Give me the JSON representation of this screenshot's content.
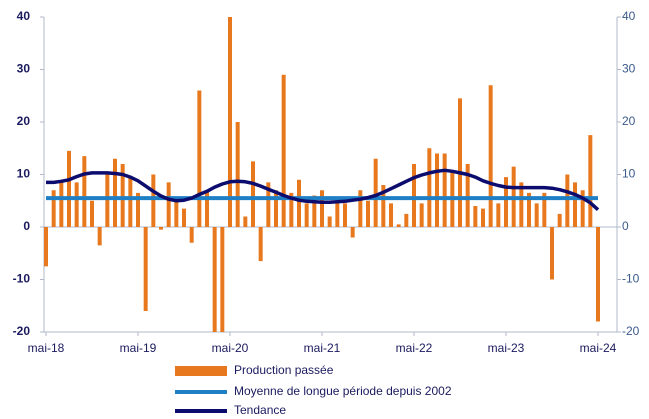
{
  "chart_data": {
    "type": "bar",
    "categories": [
      "mai-18",
      null,
      null,
      null,
      null,
      null,
      null,
      null,
      null,
      null,
      null,
      null,
      "mai-19",
      null,
      null,
      null,
      null,
      null,
      null,
      null,
      null,
      null,
      null,
      null,
      "mai-20",
      null,
      null,
      null,
      null,
      null,
      null,
      null,
      null,
      null,
      null,
      null,
      "mai-21",
      null,
      null,
      null,
      null,
      null,
      null,
      null,
      null,
      null,
      null,
      null,
      "mai-22",
      null,
      null,
      null,
      null,
      null,
      null,
      null,
      null,
      null,
      null,
      null,
      "mai-23",
      null,
      null,
      null,
      null,
      null,
      null,
      null,
      null,
      null,
      null,
      null,
      "mai-24"
    ],
    "series": [
      {
        "name": "Production passée",
        "color": "#e8781e",
        "kind": "bar",
        "values": [
          -7.5,
          7,
          8.5,
          14.5,
          8.5,
          13.5,
          5,
          -3.5,
          10.5,
          13,
          12,
          9.5,
          6.5,
          -16,
          10,
          -0.5,
          8.5,
          5.5,
          3.5,
          -3,
          26,
          7,
          -20,
          -20,
          40,
          20,
          2,
          12.5,
          -6.5,
          8.5,
          7,
          29,
          6.5,
          9,
          4.5,
          6,
          7,
          2,
          5,
          4.5,
          -2,
          7,
          5,
          13,
          8,
          4.5,
          0.5,
          2.5,
          12,
          4.5,
          15,
          14,
          14,
          10.5,
          24.5,
          12,
          4,
          3.5,
          27,
          4.5,
          9.5,
          11.5,
          8.5,
          6.5,
          4.5,
          6.5,
          -10,
          2.5,
          10,
          8.5,
          7,
          17.5,
          -18
        ]
      },
      {
        "name": "Moyenne de longue période depuis 2002",
        "color": "#1f7fc4",
        "kind": "line",
        "values": [
          5.5,
          5.5,
          5.5,
          5.5,
          5.5,
          5.5,
          5.5,
          5.5,
          5.5,
          5.5,
          5.5,
          5.5,
          5.5,
          5.5,
          5.5,
          5.5,
          5.5,
          5.5,
          5.5,
          5.5,
          5.5,
          5.5,
          5.5,
          5.5,
          5.5,
          5.5,
          5.5,
          5.5,
          5.5,
          5.5,
          5.5,
          5.5,
          5.5,
          5.5,
          5.5,
          5.5,
          5.5,
          5.5,
          5.5,
          5.5,
          5.5,
          5.5,
          5.5,
          5.5,
          5.5,
          5.5,
          5.5,
          5.5,
          5.5,
          5.5,
          5.5,
          5.5,
          5.5,
          5.5,
          5.5,
          5.5,
          5.5,
          5.5,
          5.5,
          5.5,
          5.5,
          5.5,
          5.5,
          5.5,
          5.5,
          5.5,
          5.5,
          5.5,
          5.5,
          5.5,
          5.5,
          5.5,
          5.5
        ]
      },
      {
        "name": "Tendance",
        "color": "#0c0c6e",
        "kind": "line",
        "values": [
          8.5,
          8.5,
          8.7,
          9,
          9.6,
          10.1,
          10.3,
          10.3,
          10.3,
          10.2,
          10,
          9.5,
          8.8,
          7.8,
          6.8,
          5.9,
          5.3,
          5,
          5.1,
          5.5,
          6.2,
          6.8,
          7.6,
          8.2,
          8.6,
          8.7,
          8.6,
          8.3,
          7.8,
          7.2,
          6.6,
          6,
          5.5,
          5.1,
          4.9,
          4.8,
          4.7,
          4.7,
          4.8,
          4.9,
          5.1,
          5.3,
          5.6,
          6,
          6.6,
          7.3,
          8,
          8.7,
          9.4,
          9.9,
          10.3,
          10.6,
          10.8,
          10.6,
          10.3,
          10,
          9.5,
          8.8,
          8.3,
          7.9,
          7.6,
          7.5,
          7.5,
          7.5,
          7.5,
          7.5,
          7.4,
          7.1,
          6.7,
          6.2,
          5.5,
          4.6,
          3.3
        ]
      }
    ],
    "ylim": [
      -20,
      40
    ],
    "yticks": [
      -20,
      -10,
      0,
      10,
      20,
      30,
      40
    ],
    "y2lim": [
      -20,
      40
    ],
    "y2ticks": [
      -20,
      -10,
      0,
      10,
      20,
      30,
      40
    ]
  }
}
